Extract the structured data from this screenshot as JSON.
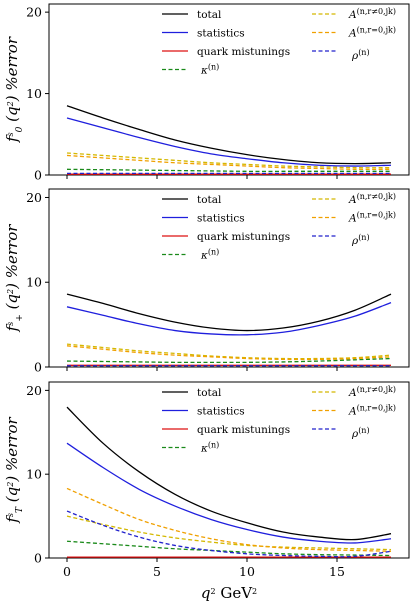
{
  "chart_data": [
    {
      "type": "line",
      "ylabel": "f_0^s (q^2) %error",
      "xlim": [
        -1,
        19
      ],
      "ylim": [
        0,
        21
      ],
      "xticks": [
        0,
        5,
        10,
        15
      ],
      "yticks": [
        0,
        10,
        20
      ],
      "x": [
        0,
        2,
        4,
        6,
        8,
        10,
        12,
        14,
        16,
        18
      ],
      "series": [
        {
          "name": "total",
          "color": "#000000",
          "dash": false,
          "values": [
            8.5,
            7.0,
            5.6,
            4.3,
            3.3,
            2.5,
            1.9,
            1.5,
            1.4,
            1.5
          ]
        },
        {
          "name": "statistics",
          "color": "#1f1fdd",
          "dash": false,
          "values": [
            7.0,
            5.8,
            4.6,
            3.5,
            2.6,
            2.0,
            1.5,
            1.2,
            1.1,
            1.2
          ]
        },
        {
          "name": "quark mistunings",
          "color": "#dd1111",
          "dash": false,
          "values": [
            0.1,
            0.1,
            0.1,
            0.1,
            0.1,
            0.1,
            0.1,
            0.1,
            0.1,
            0.1
          ]
        },
        {
          "name": "κ^(n)",
          "color": "#1a8a1a",
          "dash": true,
          "values": [
            0.7,
            0.65,
            0.6,
            0.55,
            0.5,
            0.45,
            0.45,
            0.45,
            0.45,
            0.45
          ]
        },
        {
          "name": "A^(n,r≠0,jk)",
          "color": "#d4b800",
          "dash": true,
          "values": [
            2.7,
            2.4,
            2.1,
            1.8,
            1.5,
            1.3,
            1.1,
            1.0,
            0.9,
            0.9
          ]
        },
        {
          "name": "A^(n,r=0,jk)",
          "color": "#f0a000",
          "dash": true,
          "values": [
            2.4,
            2.1,
            1.8,
            1.5,
            1.3,
            1.1,
            0.9,
            0.8,
            0.7,
            0.7
          ]
        },
        {
          "name": "ρ^(n)",
          "color": "#2222cc",
          "dash": true,
          "values": [
            0.2,
            0.2,
            0.2,
            0.2,
            0.2,
            0.2,
            0.2,
            0.2,
            0.2,
            0.2
          ]
        }
      ]
    },
    {
      "type": "line",
      "ylabel": "f_+^s (q^2) %error",
      "xlim": [
        -1,
        19
      ],
      "ylim": [
        0,
        21
      ],
      "xticks": [
        0,
        5,
        10,
        15
      ],
      "yticks": [
        0,
        10,
        20
      ],
      "x": [
        0,
        2,
        4,
        6,
        8,
        10,
        12,
        14,
        16,
        18
      ],
      "series": [
        {
          "name": "total",
          "color": "#000000",
          "dash": false,
          "values": [
            8.6,
            7.5,
            6.3,
            5.3,
            4.6,
            4.3,
            4.6,
            5.4,
            6.7,
            8.6
          ]
        },
        {
          "name": "statistics",
          "color": "#1f1fdd",
          "dash": false,
          "values": [
            7.1,
            6.1,
            5.1,
            4.3,
            3.9,
            3.8,
            4.1,
            4.9,
            6.0,
            7.6
          ]
        },
        {
          "name": "quark mistunings",
          "color": "#dd1111",
          "dash": false,
          "values": [
            0.2,
            0.2,
            0.2,
            0.2,
            0.2,
            0.2,
            0.2,
            0.2,
            0.2,
            0.2
          ]
        },
        {
          "name": "κ^(n)",
          "color": "#1a8a1a",
          "dash": true,
          "values": [
            0.7,
            0.65,
            0.6,
            0.55,
            0.55,
            0.55,
            0.6,
            0.7,
            0.85,
            1.0
          ]
        },
        {
          "name": "A^(n,r≠0,jk)",
          "color": "#d4b800",
          "dash": true,
          "values": [
            2.7,
            2.3,
            1.9,
            1.6,
            1.3,
            1.1,
            1.0,
            1.0,
            1.1,
            1.4
          ]
        },
        {
          "name": "A^(n,r=0,jk)",
          "color": "#f0a000",
          "dash": true,
          "values": [
            2.5,
            2.1,
            1.7,
            1.4,
            1.2,
            1.0,
            0.9,
            0.9,
            1.0,
            1.2
          ]
        },
        {
          "name": "ρ^(n)",
          "color": "#2222cc",
          "dash": true,
          "values": [
            0.15,
            0.15,
            0.15,
            0.15,
            0.15,
            0.15,
            0.15,
            0.15,
            0.15,
            0.15
          ]
        }
      ]
    },
    {
      "type": "line",
      "ylabel": "f_T^s (q^2) %error",
      "xlabel": "q^2 GeV^2",
      "xlim": [
        -1,
        19
      ],
      "ylim": [
        0,
        21
      ],
      "xticks": [
        0,
        5,
        10,
        15
      ],
      "yticks": [
        0,
        10,
        20
      ],
      "x": [
        0,
        2,
        4,
        6,
        8,
        10,
        12,
        14,
        16,
        18
      ],
      "series": [
        {
          "name": "total",
          "color": "#000000",
          "dash": false,
          "values": [
            18.0,
            13.7,
            10.3,
            7.6,
            5.6,
            4.2,
            3.1,
            2.5,
            2.2,
            2.9
          ]
        },
        {
          "name": "statistics",
          "color": "#1f1fdd",
          "dash": false,
          "values": [
            13.7,
            10.8,
            8.2,
            6.2,
            4.6,
            3.4,
            2.5,
            2.0,
            1.8,
            2.3
          ]
        },
        {
          "name": "quark mistunings",
          "color": "#dd1111",
          "dash": false,
          "values": [
            0.1,
            0.1,
            0.1,
            0.1,
            0.1,
            0.1,
            0.1,
            0.1,
            0.1,
            0.1
          ]
        },
        {
          "name": "κ^(n)",
          "color": "#1a8a1a",
          "dash": true,
          "values": [
            2.0,
            1.7,
            1.4,
            1.1,
            0.9,
            0.7,
            0.5,
            0.4,
            0.35,
            0.3
          ]
        },
        {
          "name": "A^(n,r≠0,jk)",
          "color": "#d4b800",
          "dash": true,
          "values": [
            5.0,
            4.0,
            3.1,
            2.4,
            1.9,
            1.5,
            1.3,
            1.2,
            1.1,
            1.0
          ]
        },
        {
          "name": "A^(n,r=0,jk)",
          "color": "#f0a000",
          "dash": true,
          "values": [
            8.3,
            6.4,
            4.6,
            3.3,
            2.3,
            1.6,
            1.2,
            1.0,
            0.9,
            0.8
          ]
        },
        {
          "name": "ρ^(n)",
          "color": "#2222cc",
          "dash": true,
          "values": [
            5.6,
            3.9,
            2.5,
            1.5,
            0.9,
            0.5,
            0.3,
            0.2,
            0.2,
            0.8
          ]
        }
      ]
    }
  ]
}
